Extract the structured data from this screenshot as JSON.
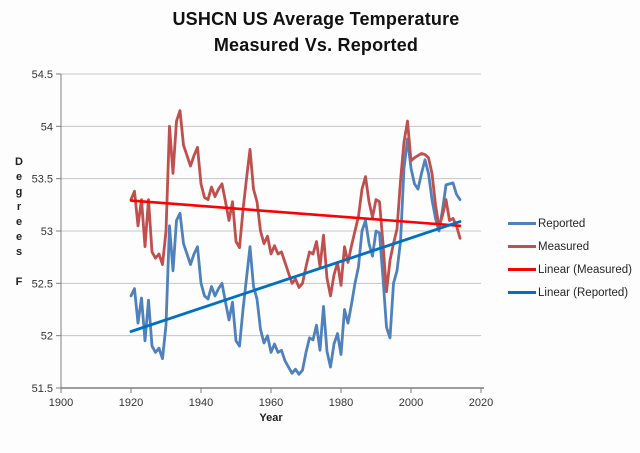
{
  "title": {
    "line1": "USHCN US Average Temperature",
    "line2": "Measured Vs. Reported"
  },
  "axes": {
    "y": {
      "label": "Degrees F",
      "tick_labels": [
        "54.5",
        "54",
        "53.5",
        "53",
        "52.5",
        "52",
        "51.5"
      ],
      "min": 51.5,
      "max": 54.5
    },
    "x": {
      "label": "Year",
      "tick_labels": [
        "1900",
        "1920",
        "1940",
        "1960",
        "1980",
        "2000",
        "2020"
      ],
      "min": 1900,
      "max": 2020
    }
  },
  "legend": {
    "items": [
      {
        "label": "Reported",
        "color": "#4F81BD"
      },
      {
        "label": "Measured",
        "color": "#C0504D"
      },
      {
        "label": "Linear (Measured)",
        "color": "#FF0000"
      },
      {
        "label": "Linear (Reported)",
        "color": "#0070C0"
      }
    ]
  },
  "colors": {
    "gridline": "#c6c6c6",
    "axis": "#7f7f7f",
    "background": "#fdfdfd"
  },
  "chart_data": {
    "type": "line",
    "title": "USHCN US Average Temperature Measured Vs. Reported",
    "xlabel": "Year",
    "ylabel": "Degrees F",
    "xlim": [
      1900,
      2020
    ],
    "ylim": [
      51.5,
      54.5
    ],
    "y_tick_step": 0.5,
    "x_tick_step": 20,
    "grid": "horizontal",
    "legend_position": "right",
    "x": [
      1920,
      1921,
      1922,
      1923,
      1924,
      1925,
      1926,
      1927,
      1928,
      1929,
      1930,
      1931,
      1932,
      1933,
      1934,
      1935,
      1936,
      1937,
      1938,
      1939,
      1940,
      1941,
      1942,
      1943,
      1944,
      1945,
      1946,
      1947,
      1948,
      1949,
      1950,
      1951,
      1952,
      1953,
      1954,
      1955,
      1956,
      1957,
      1958,
      1959,
      1960,
      1961,
      1962,
      1963,
      1964,
      1965,
      1966,
      1967,
      1968,
      1969,
      1970,
      1971,
      1972,
      1973,
      1974,
      1975,
      1976,
      1977,
      1978,
      1979,
      1980,
      1981,
      1982,
      1983,
      1984,
      1985,
      1986,
      1987,
      1988,
      1989,
      1990,
      1991,
      1992,
      1993,
      1994,
      1995,
      1996,
      1997,
      1998,
      1999,
      2000,
      2001,
      2002,
      2003,
      2004,
      2005,
      2006,
      2007,
      2008,
      2009,
      2010,
      2011,
      2012,
      2013,
      2014
    ],
    "series": [
      {
        "name": "Reported",
        "color": "#4F81BD",
        "width": 2.8,
        "values": [
          52.38,
          52.45,
          52.12,
          52.36,
          51.95,
          52.34,
          51.9,
          51.84,
          51.88,
          51.78,
          52.1,
          53.05,
          52.62,
          53.1,
          53.17,
          52.88,
          52.78,
          52.68,
          52.78,
          52.85,
          52.5,
          52.38,
          52.35,
          52.47,
          52.38,
          52.45,
          52.5,
          52.32,
          52.15,
          52.32,
          51.95,
          51.9,
          52.25,
          52.55,
          52.85,
          52.47,
          52.35,
          52.06,
          51.93,
          52.0,
          51.84,
          51.92,
          51.84,
          51.86,
          51.76,
          51.7,
          51.64,
          51.68,
          51.63,
          51.67,
          51.84,
          51.98,
          51.96,
          52.1,
          51.86,
          52.28,
          51.85,
          51.7,
          51.92,
          52.02,
          51.82,
          52.25,
          52.12,
          52.3,
          52.5,
          52.66,
          53.0,
          53.1,
          52.88,
          52.76,
          53.0,
          52.98,
          52.55,
          52.08,
          51.98,
          52.5,
          52.62,
          52.9,
          53.6,
          53.88,
          53.6,
          53.45,
          53.4,
          53.55,
          53.68,
          53.55,
          53.3,
          53.12,
          53.0,
          53.2,
          53.44,
          53.45,
          53.46,
          53.35,
          53.3
        ]
      },
      {
        "name": "Measured",
        "color": "#C0504D",
        "width": 2.8,
        "values": [
          53.3,
          53.38,
          53.05,
          53.3,
          52.85,
          53.3,
          52.8,
          52.74,
          52.78,
          52.68,
          53.0,
          54.0,
          53.55,
          54.05,
          54.15,
          53.82,
          53.72,
          53.62,
          53.72,
          53.8,
          53.45,
          53.32,
          53.3,
          53.42,
          53.33,
          53.4,
          53.45,
          53.28,
          53.1,
          53.28,
          52.9,
          52.84,
          53.2,
          53.5,
          53.78,
          53.4,
          53.28,
          53.0,
          52.88,
          52.95,
          52.78,
          52.86,
          52.78,
          52.8,
          52.7,
          52.6,
          52.5,
          52.54,
          52.46,
          52.5,
          52.66,
          52.8,
          52.78,
          52.9,
          52.66,
          52.96,
          52.55,
          52.38,
          52.58,
          52.7,
          52.48,
          52.85,
          52.7,
          52.86,
          53.0,
          53.14,
          53.4,
          53.52,
          53.28,
          53.13,
          53.3,
          53.28,
          52.88,
          52.42,
          52.72,
          52.88,
          53.02,
          53.48,
          53.85,
          54.05,
          53.67,
          53.7,
          53.72,
          53.74,
          53.73,
          53.7,
          53.55,
          53.25,
          53.04,
          53.15,
          53.3,
          53.1,
          53.12,
          53.05,
          52.93
        ]
      },
      {
        "name": "Linear (Measured)",
        "color": "#FF0000",
        "width": 2.6,
        "trend": true,
        "x": [
          1920,
          2014
        ],
        "values": [
          53.29,
          53.05
        ]
      },
      {
        "name": "Linear (Reported)",
        "color": "#0070C0",
        "width": 2.8,
        "trend": true,
        "x": [
          1920,
          2014
        ],
        "values": [
          52.04,
          53.09
        ]
      }
    ]
  }
}
